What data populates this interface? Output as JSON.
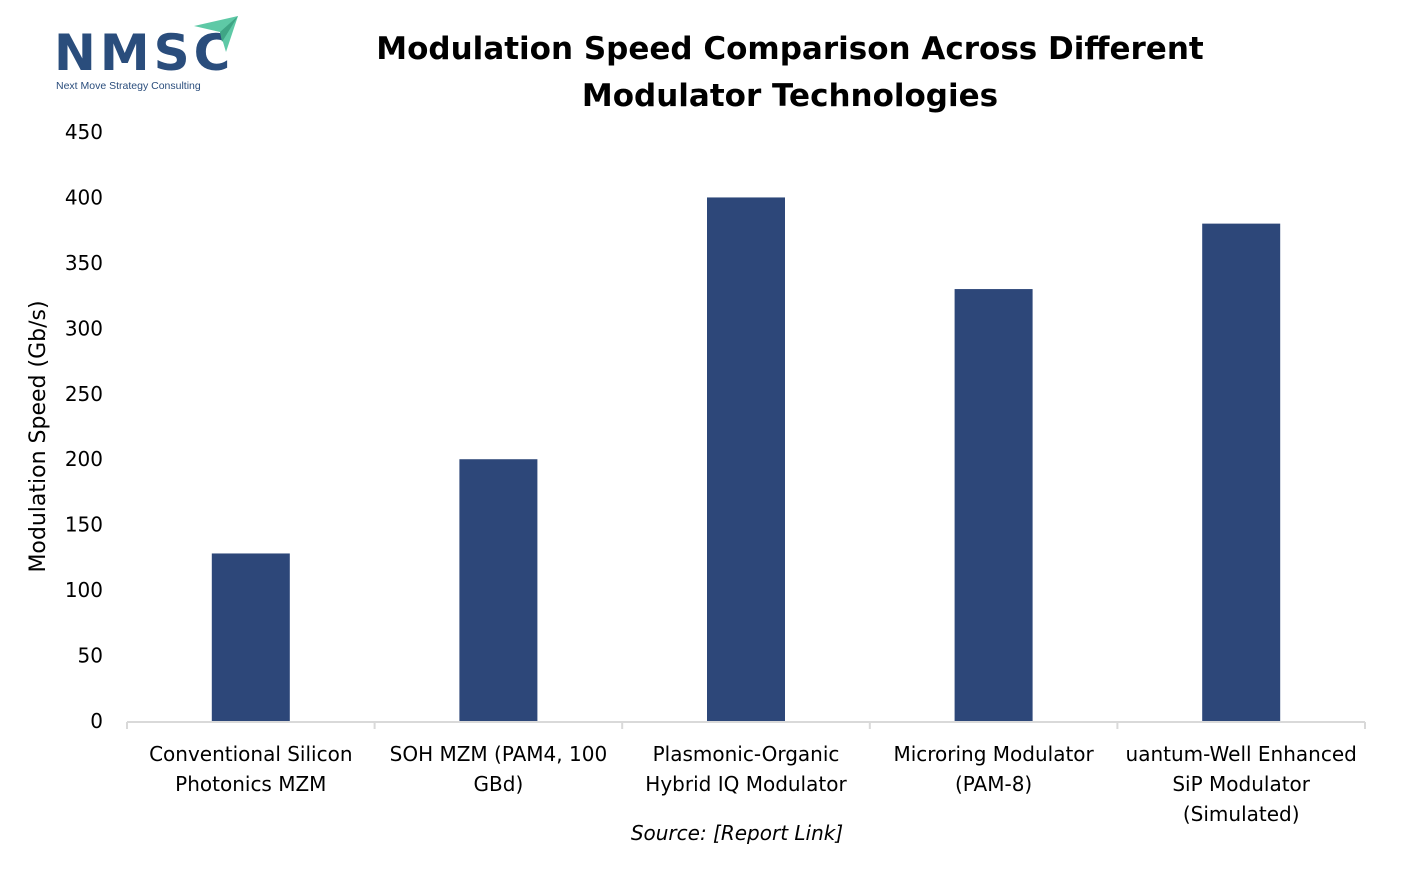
{
  "logo": {
    "text": "NMSC",
    "tagline": "Next Move Strategy Consulting"
  },
  "source_note": "Source: [Report Link]",
  "colors": {
    "bar": "#2d4779",
    "axis": "#d9d9d9",
    "logo": "#2a4d7c",
    "logo_arrow": "#5ec9a6"
  },
  "chart_data": {
    "type": "bar",
    "title": "Modulation Speed Comparison Across Different Modulator Technologies",
    "xlabel": "",
    "ylabel": "Modulation Speed (Gb/s)",
    "ylim": [
      0,
      450
    ],
    "yticks": [
      0,
      50,
      100,
      150,
      200,
      250,
      300,
      350,
      400,
      450
    ],
    "grid": false,
    "categories": [
      [
        "Conventional Silicon",
        "Photonics MZM"
      ],
      [
        "SOH MZM (PAM4, 100",
        "GBd)"
      ],
      [
        "Plasmonic-Organic",
        "Hybrid IQ Modulator"
      ],
      [
        "Microring Modulator",
        "(PAM-8)"
      ],
      [
        "uantum-Well Enhanced",
        "SiP Modulator",
        "(Simulated)"
      ]
    ],
    "values": [
      128,
      200,
      400,
      330,
      380
    ]
  }
}
